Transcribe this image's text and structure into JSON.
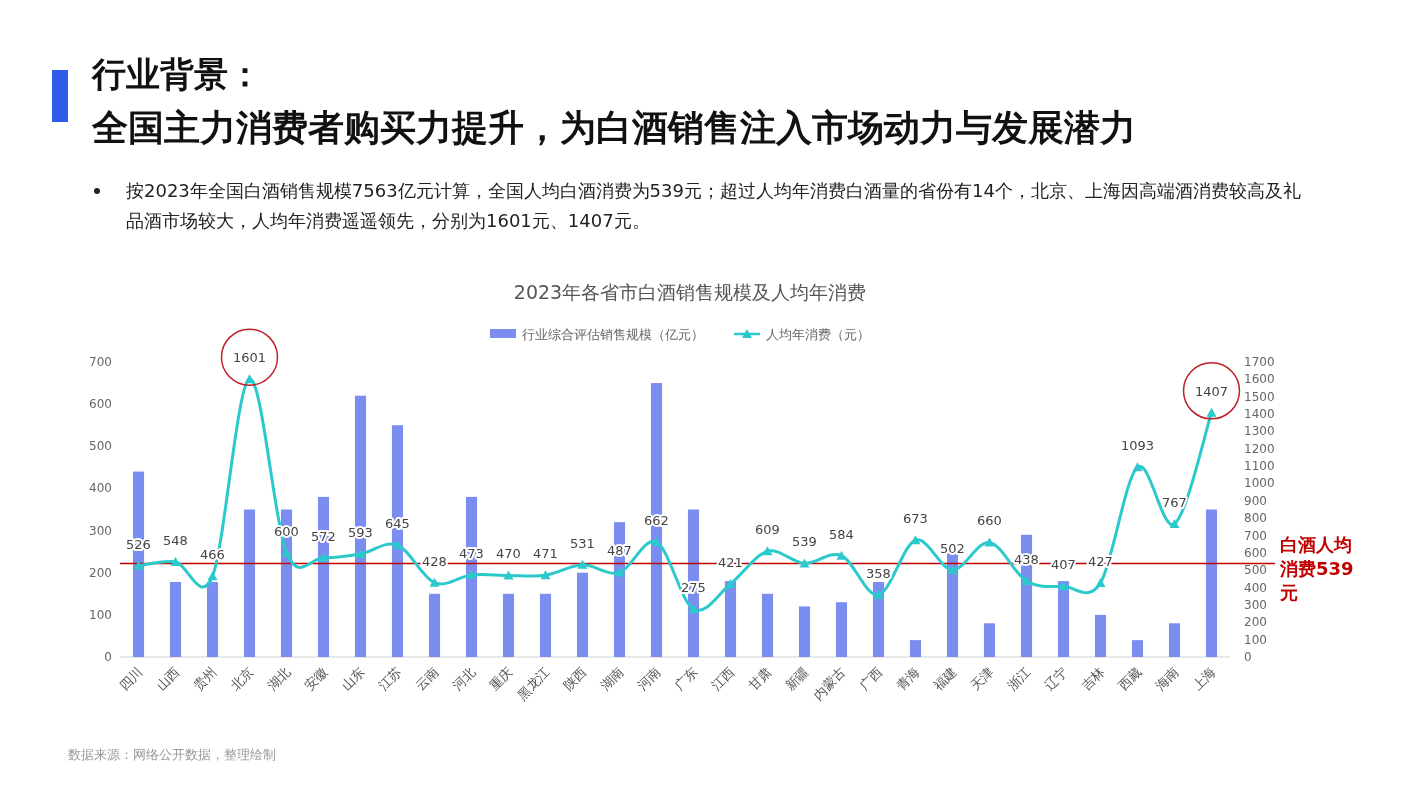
{
  "chart_data": {
    "type": "bar",
    "title": "2023年各省市白酒销售规模及人均年消费",
    "annotations": [
      "行业背景：",
      "全国主力消费者购买力提升，为白酒销售注入市场动力与发展潜力",
      "按2023年全国白酒销售规模7563亿元计算，全国人均白酒消费为539元；超过人均年消费白酒量的省份有14个，北京、上海因高端酒消费较高及礼品酒市场较大，人均年消费遥遥领先，分别为1601元、1407元。",
      "数据来源：网络公开数据，整理绘制"
    ],
    "categories": [
      "四川",
      "山西",
      "贵州",
      "北京",
      "湖北",
      "安徽",
      "山东",
      "江苏",
      "云南",
      "河北",
      "重庆",
      "黑龙江",
      "陕西",
      "湖南",
      "河南",
      "广东",
      "江西",
      "甘肃",
      "新疆",
      "内蒙古",
      "广西",
      "青海",
      "福建",
      "天津",
      "浙江",
      "辽宁",
      "吉林",
      "西藏",
      "海南",
      "上海"
    ],
    "series": [
      {
        "name": "行业综合评估销售规模（亿元）",
        "color": "#7b8ef0",
        "values": [
          440,
          178,
          178,
          350,
          350,
          380,
          620,
          550,
          150,
          380,
          150,
          150,
          200,
          320,
          650,
          350,
          180,
          150,
          120,
          130,
          178,
          40,
          250,
          80,
          290,
          180,
          100,
          40,
          80,
          350
        ]
      },
      {
        "name": "人均年消费（元）",
        "type": "line",
        "axis": "y2",
        "color": "#2cc9cc",
        "marker": "triangle",
        "values": [
          526,
          548,
          466,
          1601,
          600,
          572,
          593,
          645,
          428,
          473,
          470,
          471,
          531,
          487,
          662,
          275,
          421,
          609,
          539,
          584,
          358,
          673,
          502,
          660,
          438,
          407,
          427,
          1093,
          767,
          1407
        ],
        "value_labels": [
          "526",
          "548",
          "466",
          "1601",
          "600",
          "572",
          "593",
          "645",
          "428",
          "473",
          "470",
          "471",
          "531",
          "487",
          "662",
          "275",
          "421",
          "609",
          "539",
          "584",
          "358",
          "673",
          "502",
          "660",
          "438",
          "407",
          "427",
          "1093",
          "767",
          "1407"
        ]
      }
    ],
    "ylim": [
      0,
      700
    ],
    "yticks": [
      0,
      100,
      200,
      300,
      400,
      500,
      600,
      700
    ],
    "y2lim": [
      0,
      1700
    ],
    "y2ticks": [
      0,
      100,
      200,
      300,
      400,
      500,
      600,
      700,
      800,
      900,
      1000,
      1100,
      1200,
      1300,
      1400,
      1500,
      1600,
      1700
    ],
    "ref_lines": [
      {
        "axis": "y2",
        "value": 539,
        "label": "白酒人均消费539元",
        "color": "#c00000"
      }
    ],
    "legend": "top",
    "grid": false
  }
}
